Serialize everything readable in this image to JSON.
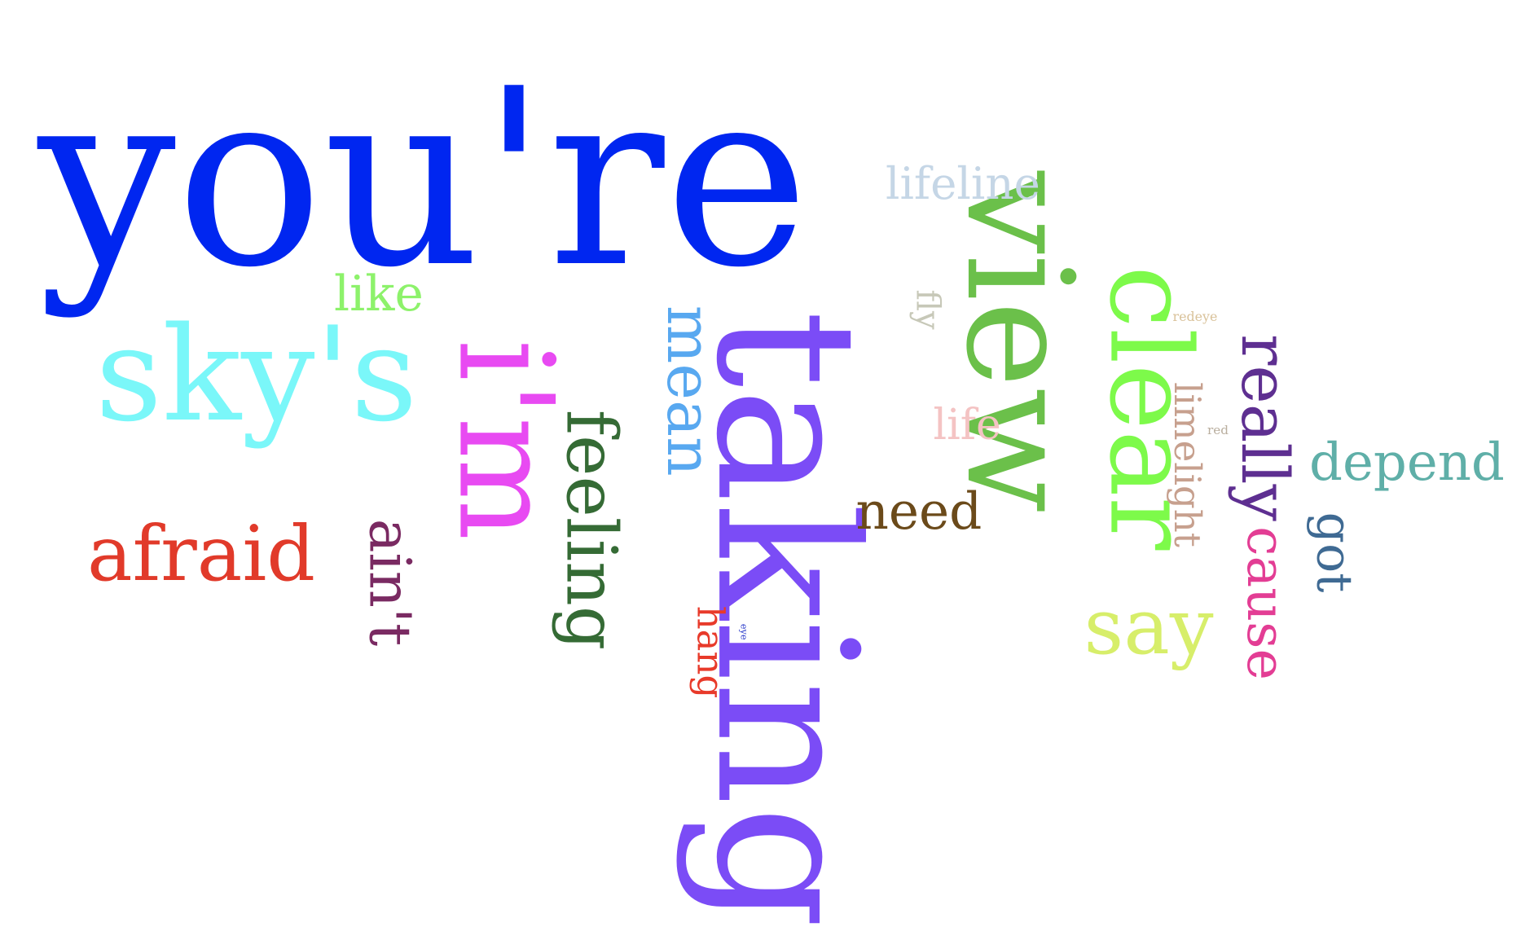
{
  "words": [
    {
      "text": "you're",
      "color": "#0026F0"
    },
    {
      "text": "view",
      "color": "#6BC04A"
    },
    {
      "text": "taking",
      "color": "#7B4CF6"
    },
    {
      "text": "i'm",
      "color": "#E84AF2"
    },
    {
      "text": "sky's",
      "color": "#7AF7F9"
    },
    {
      "text": "clear",
      "color": "#7DFA4A"
    },
    {
      "text": "mean",
      "color": "#58A8F0"
    },
    {
      "text": "feeling",
      "color": "#356B35"
    },
    {
      "text": "afraid",
      "color": "#E13A2A"
    },
    {
      "text": "ain't",
      "color": "#7A2A62"
    },
    {
      "text": "really",
      "color": "#5E2F91"
    },
    {
      "text": "cause",
      "color": "#E33D94"
    },
    {
      "text": "depend",
      "color": "#5FAFA8"
    },
    {
      "text": "got",
      "color": "#3F6A93"
    },
    {
      "text": "say",
      "color": "#D7EE6A"
    },
    {
      "text": "limelight",
      "color": "#C7A08E"
    },
    {
      "text": "need",
      "color": "#6B4A1A"
    },
    {
      "text": "lifeline",
      "color": "#C5D6E6"
    },
    {
      "text": "like",
      "color": "#8DF26B"
    },
    {
      "text": "hang",
      "color": "#E83A2A"
    },
    {
      "text": "fly",
      "color": "#C7C8B8"
    },
    {
      "text": "life",
      "color": "#F4C3C3"
    },
    {
      "text": "redeye",
      "color": "#D9C29A"
    },
    {
      "text": "red",
      "color": "#B9AE9E"
    },
    {
      "text": "eye",
      "color": "#2233C8"
    }
  ]
}
